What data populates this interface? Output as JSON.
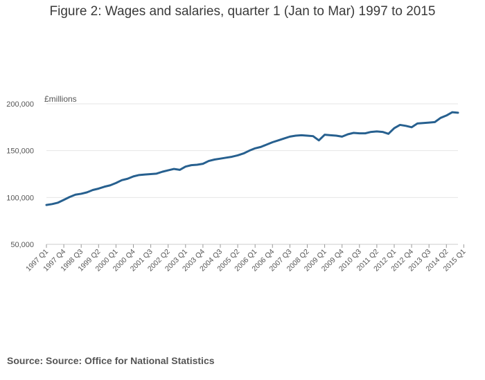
{
  "chart_data": {
    "type": "line",
    "title": "Figure 2: Wages and salaries, quarter 1 (Jan to Mar) 1997 to 2015",
    "ylabel": "£millions",
    "xlabel": "",
    "ylim": [
      50000,
      200000
    ],
    "yticks": [
      50000,
      100000,
      150000,
      200000
    ],
    "ytick_labels": [
      "50,000",
      "100,000",
      "150,000",
      "200,000"
    ],
    "xtick_labels": [
      "1997 Q1",
      "1997 Q4",
      "1998 Q3",
      "1999 Q2",
      "2000 Q1",
      "2000 Q4",
      "2001 Q3",
      "2002 Q2",
      "2003 Q1",
      "2003 Q4",
      "2004 Q3",
      "2005 Q2",
      "2006 Q1",
      "2006 Q4",
      "2007 Q3",
      "2008 Q2",
      "2009 Q1",
      "2009 Q4",
      "2010 Q3",
      "2011 Q2",
      "2012 Q1",
      "2012 Q4",
      "2013 Q3",
      "2014 Q2",
      "2015 Q1"
    ],
    "tick_step": 3,
    "line_color": "#27608f",
    "series": [
      {
        "name": "Wages and salaries",
        "values": [
          92000,
          93000,
          94500,
          97500,
          100500,
          103000,
          104000,
          105500,
          108000,
          109500,
          111500,
          113000,
          115500,
          118500,
          120000,
          122500,
          124000,
          124500,
          125000,
          125500,
          127500,
          129000,
          130500,
          129500,
          133000,
          134500,
          135000,
          136000,
          139000,
          140500,
          141500,
          142500,
          143500,
          145000,
          147000,
          150000,
          152500,
          154000,
          156500,
          159000,
          161000,
          163000,
          165000,
          166000,
          166500,
          166000,
          165500,
          161000,
          167000,
          166500,
          166000,
          165000,
          167500,
          169000,
          168500,
          168500,
          170000,
          170500,
          170000,
          168000,
          174000,
          177500,
          176500,
          175000,
          179000,
          179500,
          180000,
          180500,
          185000,
          187500,
          191000,
          190500
        ]
      }
    ]
  },
  "source": "Source: Source: Office for National Statistics"
}
